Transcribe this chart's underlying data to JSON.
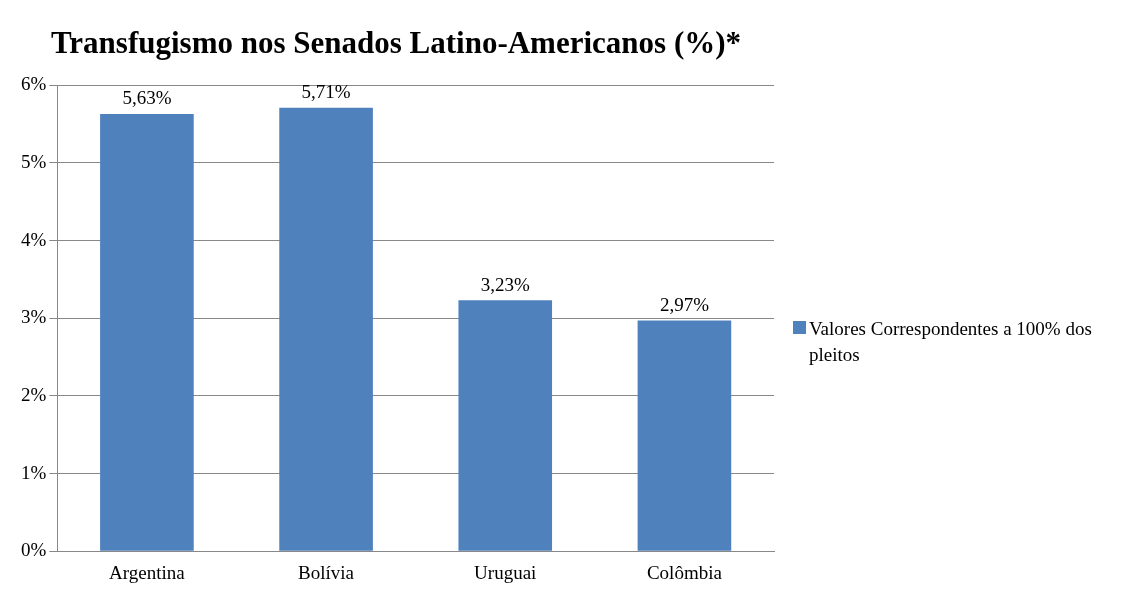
{
  "chart_data": {
    "type": "bar",
    "title": "Transfugismo nos Senados Latino-Americanos (%)*",
    "categories": [
      "Argentina",
      "Bolívia",
      "Uruguai",
      "Colômbia"
    ],
    "series": [
      {
        "name": "Valores Correspondentes a 100% dos pleitos",
        "color": "#4f81bd",
        "values": [
          5.63,
          5.71,
          3.23,
          2.97
        ],
        "value_labels": [
          "5,63%",
          "5,71%",
          "3,23%",
          "2,97%"
        ]
      }
    ],
    "ylim": [
      0,
      6
    ],
    "yticks": [
      {
        "value": 0,
        "label": "0%"
      },
      {
        "value": 1,
        "label": "1%"
      },
      {
        "value": 2,
        "label": "2%"
      },
      {
        "value": 3,
        "label": "3%"
      },
      {
        "value": 4,
        "label": "4%"
      },
      {
        "value": 5,
        "label": "5%"
      },
      {
        "value": 6,
        "label": "6%"
      }
    ],
    "grid": "y",
    "legend": "right"
  }
}
